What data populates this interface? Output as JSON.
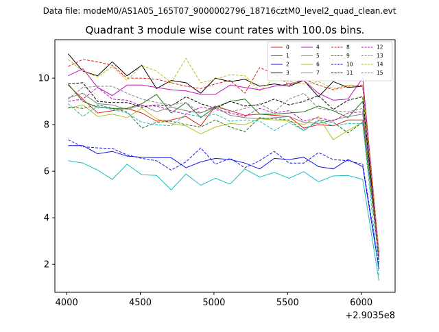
{
  "suptitle": "Data file: modeM0/AS1A05_165T07_9000002796_18716cztM0_level2_quad_clean.evt",
  "chart_data": {
    "type": "line",
    "title": "Quadrant 3 module wise count rates with 100.0s bins.",
    "xlabel": "",
    "ylabel": "",
    "x_offset_label": "+2.9035e8",
    "xlim": [
      3920,
      6230
    ],
    "ylim": [
      0.8,
      11.65
    ],
    "x_ticks": [
      4000,
      4500,
      5000,
      5500,
      6000
    ],
    "y_ticks": [
      2,
      4,
      6,
      8,
      10
    ],
    "grid": false,
    "legend_position": "top-right",
    "legend_columns": 4,
    "x": [
      4010,
      4110,
      4210,
      4310,
      4410,
      4510,
      4610,
      4710,
      4810,
      4910,
      5010,
      5110,
      5210,
      5310,
      5410,
      5510,
      5610,
      5710,
      5810,
      5910,
      6010,
      6120
    ],
    "series": [
      {
        "name": "0",
        "color": "#e8191a",
        "dash": "solid",
        "values": [
          9.7,
          9.1,
          8.5,
          8.6,
          8.7,
          8.5,
          8.15,
          8.2,
          8.35,
          7.95,
          8.8,
          8.6,
          8.4,
          8.45,
          8.4,
          8.35,
          7.85,
          8.0,
          7.95,
          8.2,
          8.2,
          2.5
        ]
      },
      {
        "name": "1",
        "color": "#1b7a1b",
        "dash": "solid",
        "values": [
          9.75,
          9.0,
          8.75,
          8.7,
          8.7,
          8.9,
          9.3,
          8.5,
          8.95,
          8.3,
          8.75,
          9.0,
          9.1,
          8.45,
          8.45,
          8.5,
          8.55,
          8.8,
          8.6,
          8.3,
          9.0,
          2.45
        ]
      },
      {
        "name": "2",
        "color": "#1515e6",
        "dash": "solid",
        "values": [
          7.1,
          7.1,
          6.75,
          6.85,
          6.65,
          6.6,
          6.58,
          6.58,
          6.15,
          6.4,
          6.55,
          6.5,
          6.35,
          6.1,
          6.55,
          6.5,
          6.6,
          6.2,
          6.1,
          6.5,
          6.2,
          1.8
        ]
      },
      {
        "name": "3",
        "color": "#000000",
        "dash": "solid",
        "values": [
          11.05,
          10.3,
          10.1,
          10.7,
          10.1,
          10.55,
          9.55,
          9.9,
          9.8,
          9.35,
          10.0,
          9.85,
          9.95,
          9.65,
          9.75,
          9.65,
          9.9,
          9.2,
          9.85,
          9.6,
          9.65,
          2.3
        ]
      },
      {
        "name": "4",
        "color": "#c010c0",
        "dash": "solid",
        "values": [
          10.1,
          10.4,
          9.6,
          9.25,
          9.7,
          9.7,
          9.6,
          9.5,
          9.45,
          9.3,
          9.3,
          9.7,
          9.6,
          9.5,
          9.65,
          9.75,
          9.9,
          9.35,
          9.05,
          9.1,
          10.0,
          2.55
        ]
      },
      {
        "name": "5",
        "color": "#17bfbf",
        "dash": "solid",
        "values": [
          6.45,
          6.35,
          6.05,
          5.65,
          6.3,
          5.85,
          5.82,
          5.2,
          5.88,
          5.4,
          5.7,
          5.45,
          6.1,
          5.75,
          5.95,
          5.7,
          5.98,
          5.55,
          5.8,
          5.82,
          5.65,
          1.3
        ]
      },
      {
        "name": "6",
        "color": "#bdbd1a",
        "dash": "solid",
        "values": [
          8.7,
          8.85,
          8.35,
          8.45,
          8.3,
          8.7,
          8.25,
          8.05,
          7.95,
          7.6,
          7.9,
          8.05,
          8.0,
          8.25,
          8.2,
          8.15,
          8.0,
          8.35,
          7.35,
          7.75,
          8.1,
          2.4
        ]
      },
      {
        "name": "7",
        "color": "#808080",
        "dash": "solid",
        "values": [
          9.15,
          9.35,
          8.9,
          8.85,
          8.65,
          8.85,
          8.55,
          8.75,
          8.6,
          8.5,
          8.75,
          8.4,
          8.3,
          8.25,
          8.3,
          8.35,
          8.1,
          8.05,
          8.2,
          8.35,
          8.45,
          2.35
        ]
      },
      {
        "name": "8",
        "color": "#e8191a",
        "dash": "dashed",
        "values": [
          10.5,
          10.8,
          10.7,
          10.55,
          10.0,
          10.0,
          9.95,
          9.8,
          9.65,
          9.55,
          9.75,
          9.9,
          9.35,
          10.45,
          10.2,
          9.7,
          9.95,
          9.7,
          9.5,
          9.65,
          9.7,
          2.4
        ]
      },
      {
        "name": "9",
        "color": "#1b7a1b",
        "dash": "dashed",
        "values": [
          8.75,
          8.7,
          8.85,
          8.7,
          8.55,
          7.85,
          8.1,
          8.15,
          8.0,
          7.9,
          8.2,
          7.9,
          7.7,
          8.3,
          8.25,
          8.2,
          7.75,
          8.2,
          8.1,
          7.65,
          8.1,
          2.2
        ]
      },
      {
        "name": "10",
        "color": "#1515e6",
        "dash": "dashed",
        "values": [
          7.35,
          7.05,
          7.0,
          6.98,
          6.7,
          6.55,
          6.45,
          6.05,
          6.4,
          7.0,
          6.3,
          6.55,
          6.15,
          6.45,
          6.85,
          6.35,
          6.35,
          6.8,
          6.5,
          6.45,
          6.3,
          1.95
        ]
      },
      {
        "name": "11",
        "color": "#000000",
        "dash": "dashed",
        "values": [
          9.75,
          9.8,
          9.0,
          8.95,
          8.95,
          8.75,
          8.85,
          8.8,
          9.2,
          8.9,
          8.7,
          9.0,
          8.8,
          8.85,
          9.1,
          8.85,
          9.0,
          9.25,
          8.65,
          9.05,
          9.2,
          2.1
        ]
      },
      {
        "name": "12",
        "color": "#c010c0",
        "dash": "dashed",
        "values": [
          9.0,
          9.1,
          9.6,
          9.1,
          9.05,
          8.8,
          8.8,
          8.6,
          8.45,
          8.75,
          8.65,
          8.5,
          8.35,
          8.7,
          8.5,
          8.6,
          8.15,
          8.3,
          8.15,
          8.5,
          8.55,
          2.35
        ]
      },
      {
        "name": "13",
        "color": "#17bfbf",
        "dash": "dashed",
        "values": [
          8.9,
          8.35,
          8.8,
          8.65,
          8.5,
          8.1,
          8.0,
          7.95,
          8.45,
          8.35,
          8.45,
          8.15,
          8.2,
          8.15,
          7.75,
          8.1,
          7.75,
          8.15,
          7.95,
          8.05,
          8.05,
          1.5
        ]
      },
      {
        "name": "14",
        "color": "#bdbd1a",
        "dash": "dashed",
        "values": [
          10.8,
          10.3,
          10.05,
          10.5,
          9.9,
          10.55,
          10.3,
          9.8,
          10.85,
          9.8,
          9.95,
          10.15,
          10.1,
          9.45,
          10.0,
          9.85,
          9.75,
          9.85,
          9.55,
          9.7,
          9.65,
          2.6
        ]
      },
      {
        "name": "15",
        "color": "#808080",
        "dash": "dashed",
        "values": [
          9.1,
          9.6,
          9.65,
          9.65,
          9.35,
          9.1,
          8.95,
          8.85,
          8.95,
          8.5,
          8.8,
          8.55,
          8.7,
          8.9,
          8.55,
          9.1,
          9.35,
          8.7,
          8.6,
          8.55,
          8.7,
          2.2
        ]
      }
    ]
  }
}
